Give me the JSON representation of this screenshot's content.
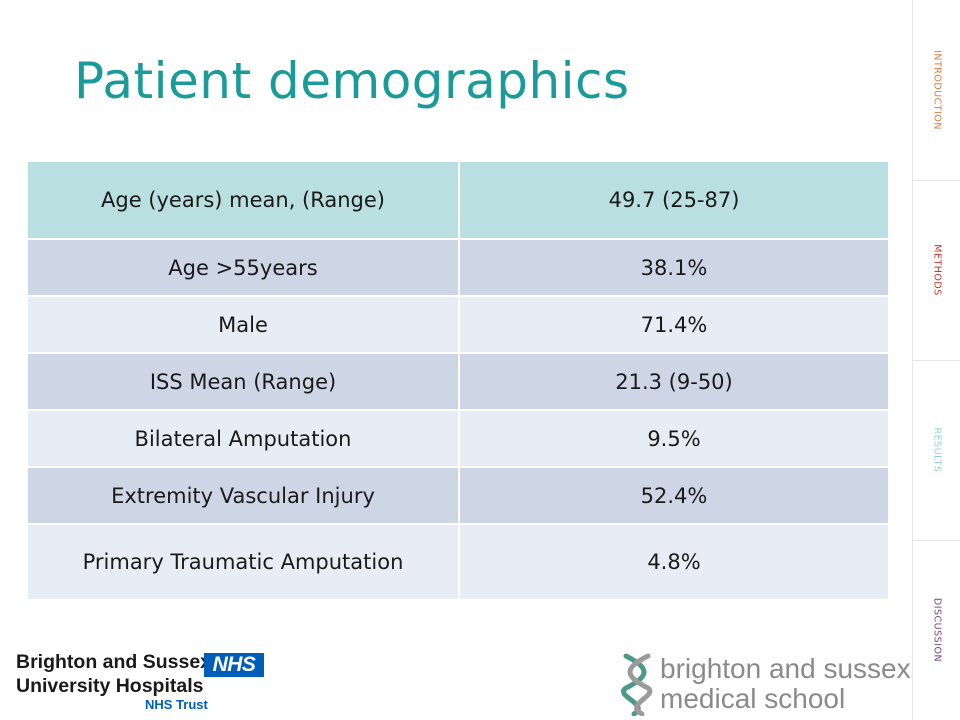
{
  "slide": {
    "title": "Patient demographics"
  },
  "table": {
    "rows": [
      {
        "label": "Age (years) mean, (Range)",
        "value": "49.7 (25-87)"
      },
      {
        "label": "Age >55years",
        "value": "38.1%"
      },
      {
        "label": "Male",
        "value": "71.4%"
      },
      {
        "label": "ISS Mean (Range)",
        "value": "21.3 (9-50)"
      },
      {
        "label": "Bilateral Amputation",
        "value": "9.5%"
      },
      {
        "label": "Extremity Vascular Injury",
        "value": "52.4%"
      },
      {
        "label": "Primary Traumatic Amputation",
        "value": "4.8%"
      }
    ]
  },
  "sidebar": {
    "sections": [
      {
        "label": "INTRODUCTION",
        "color": "#e07b39"
      },
      {
        "label": "METHODS",
        "color": "#c0392b"
      },
      {
        "label": "RESULTS",
        "color": "#8fd3e0"
      },
      {
        "label": "DISCUSSION",
        "color": "#7b3f8c"
      }
    ]
  },
  "logos": {
    "bsuh": {
      "line1": "Brighton and Sussex",
      "line2": "University Hospitals",
      "nhs": "NHS",
      "trust": "NHS Trust",
      "nhs_color": "#005eb8"
    },
    "bsms": {
      "line1": "brighton and sussex",
      "line2": "medical school",
      "helix_colors": [
        "#4a9a8a",
        "#9b9b9b"
      ]
    }
  },
  "colors": {
    "title": "#1a9b99",
    "header_row": "#b9dfe0",
    "odd_row": "#ced6e6",
    "even_row": "#e8ecf4"
  }
}
